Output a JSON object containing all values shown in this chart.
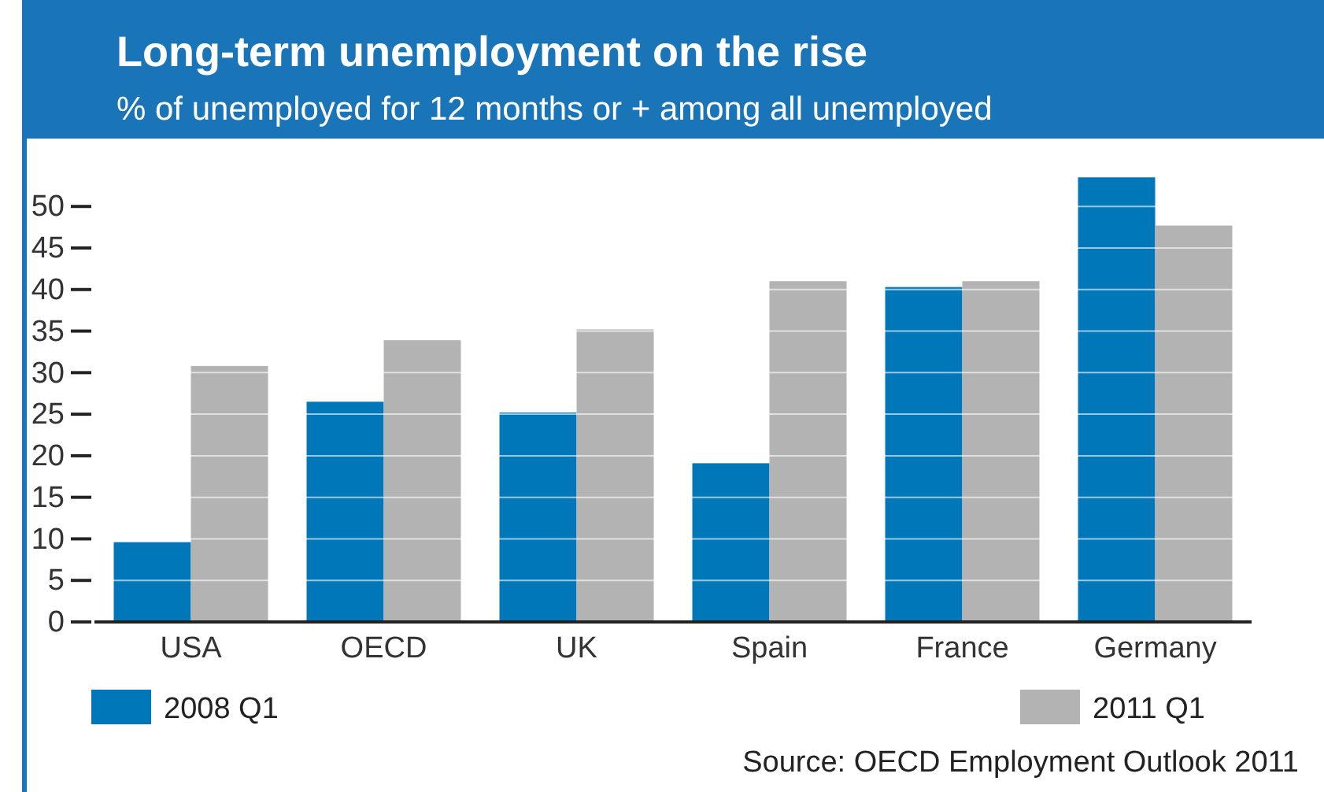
{
  "chart_data": {
    "type": "bar",
    "title": "Long-term unemployment on the rise",
    "subtitle": "% of unemployed for 12 months or + among all unemployed",
    "categories": [
      "USA",
      "OECD",
      "UK",
      "Spain",
      "France",
      "Germany"
    ],
    "series": [
      {
        "name": "2008 Q1",
        "color": "#0077b8",
        "values": [
          9.6,
          26.5,
          25.2,
          19.1,
          40.3,
          53.5
        ]
      },
      {
        "name": "2011 Q1",
        "color": "#b3b3b3",
        "values": [
          30.8,
          33.9,
          35.2,
          41,
          41,
          47.7
        ]
      }
    ],
    "ylim": [
      0,
      54
    ],
    "yticks": [
      0,
      5,
      10,
      15,
      20,
      25,
      30,
      35,
      40,
      45,
      50
    ],
    "grid": "y",
    "legend": "bottom",
    "annotations": [
      "Source: OECD Employment Outlook 2011"
    ]
  }
}
